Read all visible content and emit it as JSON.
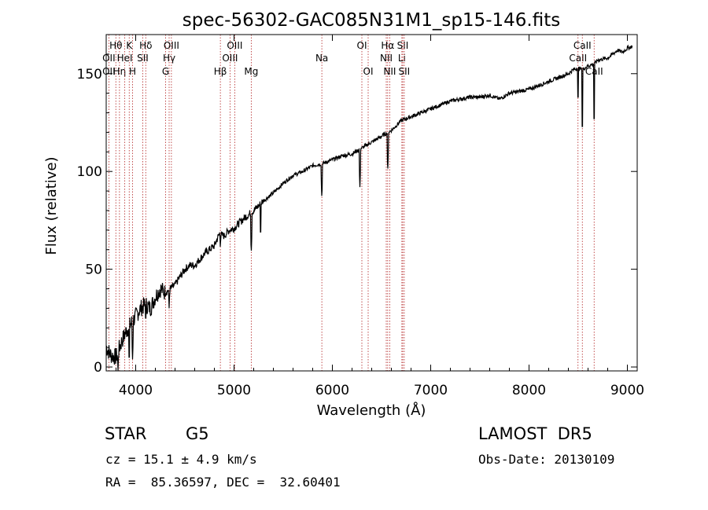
{
  "chart_data": {
    "type": "line",
    "title": "spec-56302-GAC085N31M1_sp15-146.fits",
    "xlabel": "Wavelength (Å)",
    "ylabel": "Flux (relative)",
    "xlim": [
      3700,
      9100
    ],
    "ylim": [
      -2,
      170
    ],
    "xticks": [
      4000,
      5000,
      6000,
      7000,
      8000,
      9000
    ],
    "yticks": [
      0,
      50,
      100,
      150
    ],
    "grid": false,
    "series": [
      {
        "x": [
          3700,
          3750,
          3800,
          3850,
          3900,
          3950,
          4000,
          4050,
          4100,
          4150,
          4200,
          4250,
          4300,
          4350,
          4400,
          4450,
          4500,
          4550,
          4600,
          4650,
          4700,
          4750,
          4800,
          4850,
          4900,
          4950,
          5000,
          5100,
          5200,
          5300,
          5400,
          5500,
          5600,
          5700,
          5800,
          5900,
          6000,
          6100,
          6200,
          6300,
          6400,
          6500,
          6600,
          6700,
          6800,
          6900,
          7000,
          7100,
          7200,
          7300,
          7400,
          7500,
          7600,
          7700,
          7800,
          7900,
          8000,
          8100,
          8200,
          8300,
          8400,
          8450,
          8500,
          8542,
          8600,
          8662,
          8700,
          8800,
          8850,
          8900,
          8950,
          9000,
          9050
        ],
        "y": [
          10,
          6,
          5,
          12,
          18,
          22,
          26,
          30,
          32,
          30,
          36,
          40,
          38,
          40,
          42,
          46,
          50,
          52,
          52,
          55,
          58,
          60,
          62,
          68,
          67,
          70,
          71,
          76,
          80,
          85,
          89,
          94,
          98,
          100,
          103,
          104,
          106,
          108,
          109,
          112,
          115,
          118,
          121,
          126,
          128,
          130,
          132,
          134,
          136,
          137,
          138,
          138,
          139,
          137,
          140,
          141,
          142,
          144,
          146,
          148,
          150,
          152,
          153,
          152,
          154,
          155,
          157,
          158,
          160,
          162,
          161,
          163,
          164
        ]
      }
    ],
    "absorption_dips": [
      {
        "x": 3820,
        "y": -2
      },
      {
        "x": 3934,
        "y": 2
      },
      {
        "x": 3968,
        "y": 4
      },
      {
        "x": 4102,
        "y": 22
      },
      {
        "x": 4340,
        "y": 30
      },
      {
        "x": 4861,
        "y": 60
      },
      {
        "x": 5175,
        "y": 58
      },
      {
        "x": 5270,
        "y": 66
      },
      {
        "x": 5893,
        "y": 86
      },
      {
        "x": 6280,
        "y": 92
      },
      {
        "x": 6563,
        "y": 100
      },
      {
        "x": 8498,
        "y": 135
      },
      {
        "x": 8542,
        "y": 120
      },
      {
        "x": 8662,
        "y": 124
      }
    ],
    "line_markers": [
      {
        "x": 3727,
        "top": "",
        "mid": "OII",
        "low": "OII"
      },
      {
        "x": 3798,
        "top": "Hθ",
        "mid": "",
        "low": ""
      },
      {
        "x": 3835,
        "top": "",
        "mid": "",
        "low": "Hη"
      },
      {
        "x": 3889,
        "top": "",
        "mid": "HeI",
        "low": ""
      },
      {
        "x": 3934,
        "top": "K",
        "mid": "",
        "low": ""
      },
      {
        "x": 3968,
        "top": "",
        "mid": "",
        "low": "H"
      },
      {
        "x": 4072,
        "top": "",
        "mid": "SII",
        "low": ""
      },
      {
        "x": 4102,
        "top": "Hδ",
        "mid": "",
        "low": ""
      },
      {
        "x": 4304,
        "top": "",
        "mid": "",
        "low": "G"
      },
      {
        "x": 4340,
        "top": "",
        "mid": "Hγ",
        "low": ""
      },
      {
        "x": 4363,
        "top": "OIII",
        "mid": "",
        "low": ""
      },
      {
        "x": 4861,
        "top": "",
        "mid": "",
        "low": "Hβ"
      },
      {
        "x": 4959,
        "top": "",
        "mid": "OIII",
        "low": ""
      },
      {
        "x": 5007,
        "top": "OIII",
        "mid": "",
        "low": ""
      },
      {
        "x": 5175,
        "top": "",
        "mid": "",
        "low": "Mg"
      },
      {
        "x": 5893,
        "top": "",
        "mid": "Na",
        "low": ""
      },
      {
        "x": 6300,
        "top": "OI",
        "mid": "",
        "low": ""
      },
      {
        "x": 6364,
        "top": "",
        "mid": "",
        "low": "OI"
      },
      {
        "x": 6548,
        "top": "",
        "mid": "NII",
        "low": ""
      },
      {
        "x": 6563,
        "top": "Hα",
        "mid": "",
        "low": ""
      },
      {
        "x": 6583,
        "top": "",
        "mid": "",
        "low": "NII"
      },
      {
        "x": 6707,
        "top": "",
        "mid": "Li",
        "low": ""
      },
      {
        "x": 6716,
        "top": "SII",
        "mid": "",
        "low": ""
      },
      {
        "x": 6731,
        "top": "",
        "mid": "",
        "low": "SII"
      },
      {
        "x": 8498,
        "top": "",
        "mid": "CaII",
        "low": ""
      },
      {
        "x": 8542,
        "top": "CaII",
        "mid": "",
        "low": ""
      },
      {
        "x": 8662,
        "top": "",
        "mid": "",
        "low": "CaII"
      }
    ]
  },
  "info": {
    "class_label": "STAR",
    "subclass": "G5",
    "survey": "LAMOST  DR5",
    "redshift_line": "cz = 15.1 ± 4.9 km/s",
    "obs_date_line": "Obs-Date: 20130109",
    "coords_line": "RA =  85.36597, DEC =  32.60401"
  }
}
